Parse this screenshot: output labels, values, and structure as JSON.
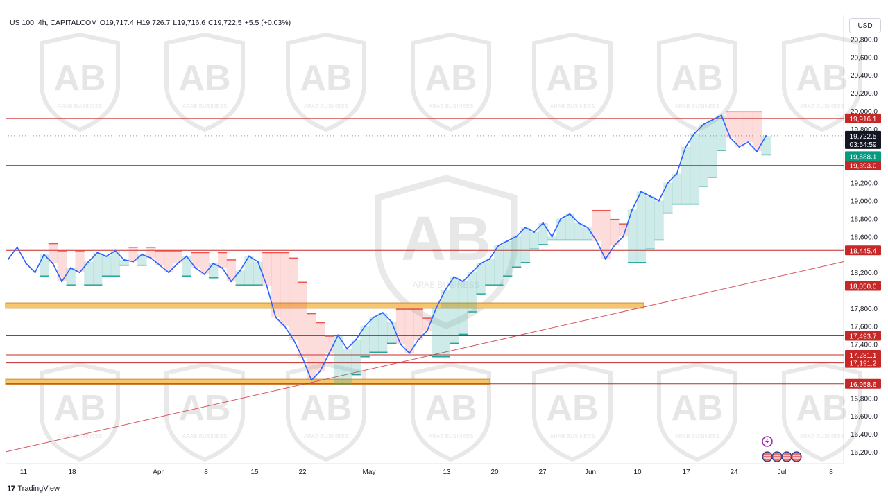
{
  "header": {
    "symbol": "US 100, 4h, CAPITALCOM",
    "open": "O19,717.4",
    "high": "H19,726.7",
    "low": "L19,716.6",
    "close": "C19,722.5",
    "change": "+5.5 (+0.03%)"
  },
  "currency": "USD",
  "branding": {
    "watermark": "ARAB BUSINESS",
    "footer": "TradingView"
  },
  "colors": {
    "up_candle": "#2962ff",
    "level_line": "#c62828",
    "support_zone": "#f7c56e",
    "trendline": "#d4545e",
    "stop_bull": "#26a69a",
    "stop_bear": "#ef5350",
    "last_price_tag": "#131722",
    "stop_tag": "#089981"
  },
  "chart_data": {
    "type": "line",
    "title": "US 100, 4h, CAPITALCOM",
    "ylim": [
      16100,
      20900
    ],
    "grid": false,
    "x_ticks": [
      "11",
      "18",
      "Apr",
      "8",
      "15",
      "22",
      "May",
      "13",
      "20",
      "27",
      "Jun",
      "10",
      "17",
      "24",
      "Jul",
      "8"
    ],
    "y_ticks": [
      "20,800.0",
      "20,600.0",
      "20,400.0",
      "20,200.0",
      "20,000.0",
      "19,800.0",
      "19,200.0",
      "19,000.0",
      "18,800.0",
      "18,600.0",
      "18,200.0",
      "17,800.0",
      "17,600.0",
      "17,400.0",
      "16,800.0",
      "16,600.0",
      "16,400.0",
      "16,200.0"
    ],
    "y_tick_values": [
      20800,
      20600,
      20400,
      20200,
      20000,
      19800,
      19200,
      19000,
      18800,
      18600,
      18200,
      17800,
      17600,
      17400,
      16800,
      16600,
      16400,
      16200
    ],
    "series": [
      {
        "values": [
          18350,
          18480,
          18300,
          18200,
          18400,
          18300,
          18100,
          18250,
          18200,
          18320,
          18420,
          18380,
          18440,
          18340,
          18320,
          18400,
          18360,
          18280,
          18200,
          18300,
          18380,
          18250,
          18180,
          18300,
          18250,
          18100,
          18220,
          18380,
          18320,
          18050,
          17700,
          17600,
          17450,
          17250,
          17000,
          17100,
          17300,
          17500,
          17350,
          17450,
          17600,
          17700,
          17750,
          17650,
          17400,
          17300,
          17450,
          17550,
          17800,
          18000,
          18150,
          18100,
          18200,
          18300,
          18350,
          18500,
          18550,
          18600,
          18700,
          18650,
          18750,
          18600,
          18800,
          18850,
          18750,
          18700,
          18550,
          18350,
          18500,
          18600,
          18900,
          19100,
          19050,
          19000,
          19200,
          19300,
          19600,
          19750,
          19850,
          19900,
          19950,
          19700,
          19600,
          19650,
          19550,
          19720
        ]
      }
    ],
    "horizontal_levels": [
      19916.1,
      19393.0,
      18445.4,
      18050.0,
      17493.7,
      17281.1,
      17191.2,
      16958.6
    ],
    "level_labels": [
      "19,916.1",
      "19,393.0",
      "18,445.4",
      "18,050.0",
      "17,493.7",
      "17,281.1",
      "17,191.2",
      "16,958.6"
    ],
    "support_zones": [
      {
        "from": 17800,
        "to": 17860
      },
      {
        "from": 16950,
        "to": 17010
      }
    ],
    "trendline": {
      "from": 16200,
      "to": 18320
    },
    "last_price": {
      "value": 19722.5,
      "label": "19,722.5",
      "countdown": "03:54:59"
    },
    "stop_price": {
      "value": 19588.1,
      "label": "19,588.1"
    }
  }
}
